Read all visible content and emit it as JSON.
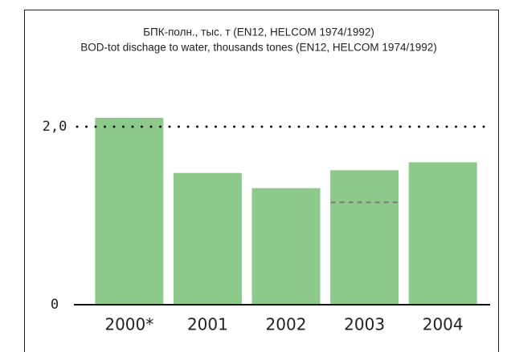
{
  "chart_data": {
    "type": "bar",
    "title": "БПК-полн., тыс. т (EN12, HELCOM 1974/1992)",
    "subtitle": "BOD-tot dischage to water, thousands tones (EN12, HELCOM 1974/1992)",
    "categories": [
      "2000*",
      "2001",
      "2002",
      "2003",
      "2004"
    ],
    "values": [
      2.1,
      1.48,
      1.31,
      1.51,
      1.6
    ],
    "dashed_line_values": [
      null,
      null,
      null,
      1.15,
      null
    ],
    "color": "#8ec98c",
    "ylim": [
      0,
      2.5
    ],
    "yticks": [
      0,
      {
        "value": 2,
        "label": "2,0"
      }
    ],
    "grid": "dotted"
  }
}
